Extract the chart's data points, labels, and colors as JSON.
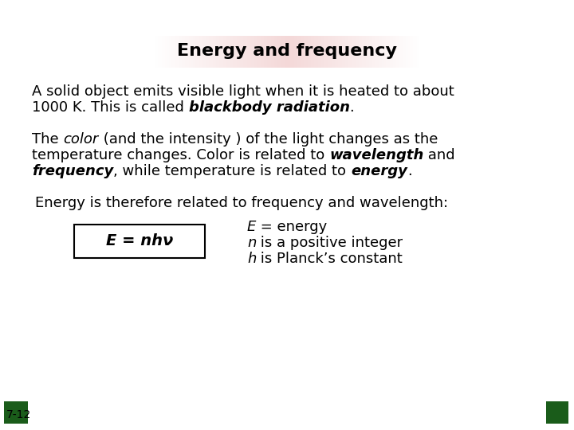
{
  "title": "Energy and frequency",
  "title_bg_color": "#f0c8c8",
  "title_fontsize": 16,
  "bg_color": "#ffffff",
  "text_color": "#000000",
  "fontsize_body": 13,
  "fontsize_formula": 14,
  "fontsize_slide_num": 10,
  "green_color": "#1a5c1a",
  "slide_num": "7-12",
  "formula": "E = nhν"
}
